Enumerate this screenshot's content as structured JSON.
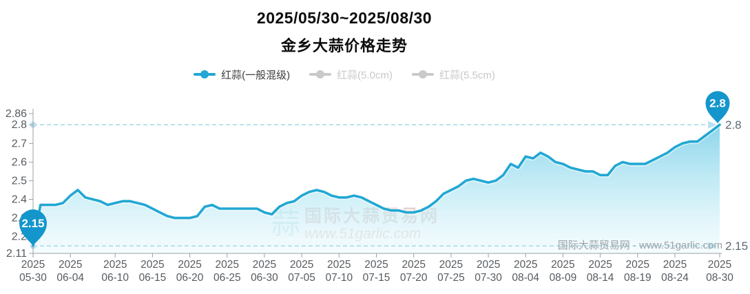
{
  "header": {
    "title": "2025/05/30~2025/08/30",
    "subtitle": "金乡大蒜价格走势"
  },
  "legend": [
    {
      "label": "红蒜(一般混级)",
      "active": true
    },
    {
      "label": "红蒜(5.0cm)",
      "active": false
    },
    {
      "label": "红蒜(5.5cm)",
      "active": false
    }
  ],
  "watermark": {
    "center_name": "国际大蒜贸易网",
    "center_url": "www.51garlic.com",
    "logo_glyph": "蒜",
    "corner": "国际大蒜贸易网 · www.51garlic.com"
  },
  "chart_data": {
    "type": "area",
    "title": "金乡大蒜价格走势",
    "date_range": "2025/05/30~2025/08/30",
    "series_name": "红蒜(一般混级)",
    "interval": "daily",
    "ylim": [
      2.11,
      2.86
    ],
    "grid": false,
    "legend_position": "top-center",
    "y_ticks": [
      {
        "label": "2.86",
        "value": 2.86
      },
      {
        "label": "2.8",
        "value": 2.8
      },
      {
        "label": "2.7",
        "value": 2.7
      },
      {
        "label": "2.6",
        "value": 2.6
      },
      {
        "label": "2.5",
        "value": 2.5
      },
      {
        "label": "2.4",
        "value": 2.4
      },
      {
        "label": "2.3",
        "value": 2.3
      },
      {
        "label": "2.2",
        "value": 2.2
      },
      {
        "label": "2.11",
        "value": 2.11
      }
    ],
    "x_ticks": [
      {
        "year": "2025",
        "date": "05-30",
        "day": 0
      },
      {
        "year": "2025",
        "date": "06-04",
        "day": 5
      },
      {
        "year": "2025",
        "date": "06-10",
        "day": 11
      },
      {
        "year": "2025",
        "date": "06-15",
        "day": 16
      },
      {
        "year": "2025",
        "date": "06-20",
        "day": 21
      },
      {
        "year": "2025",
        "date": "06-25",
        "day": 26
      },
      {
        "year": "2025",
        "date": "06-30",
        "day": 31
      },
      {
        "year": "2025",
        "date": "07-05",
        "day": 36
      },
      {
        "year": "2025",
        "date": "07-10",
        "day": 41
      },
      {
        "year": "2025",
        "date": "07-15",
        "day": 46
      },
      {
        "year": "2025",
        "date": "07-20",
        "day": 51
      },
      {
        "year": "2025",
        "date": "07-25",
        "day": 56
      },
      {
        "year": "2025",
        "date": "07-30",
        "day": 61
      },
      {
        "year": "2025",
        "date": "08-04",
        "day": 66
      },
      {
        "year": "2025",
        "date": "08-09",
        "day": 71
      },
      {
        "year": "2025",
        "date": "08-14",
        "day": 76
      },
      {
        "year": "2025",
        "date": "08-19",
        "day": 81
      },
      {
        "year": "2025",
        "date": "08-24",
        "day": 86
      },
      {
        "year": "2025",
        "date": "08-30",
        "day": 92
      }
    ],
    "values": [
      2.15,
      2.37,
      2.37,
      2.37,
      2.38,
      2.42,
      2.45,
      2.41,
      2.4,
      2.39,
      2.37,
      2.38,
      2.39,
      2.39,
      2.38,
      2.37,
      2.35,
      2.33,
      2.31,
      2.3,
      2.3,
      2.3,
      2.31,
      2.36,
      2.37,
      2.35,
      2.35,
      2.35,
      2.35,
      2.35,
      2.35,
      2.33,
      2.32,
      2.36,
      2.38,
      2.39,
      2.42,
      2.44,
      2.45,
      2.44,
      2.42,
      2.41,
      2.41,
      2.42,
      2.41,
      2.39,
      2.37,
      2.35,
      2.34,
      2.34,
      2.33,
      2.33,
      2.34,
      2.36,
      2.39,
      2.43,
      2.45,
      2.47,
      2.5,
      2.51,
      2.5,
      2.49,
      2.5,
      2.53,
      2.59,
      2.57,
      2.63,
      2.62,
      2.65,
      2.63,
      2.6,
      2.59,
      2.57,
      2.56,
      2.55,
      2.55,
      2.53,
      2.53,
      2.58,
      2.6,
      2.59,
      2.59,
      2.59,
      2.61,
      2.63,
      2.65,
      2.68,
      2.7,
      2.71,
      2.71,
      2.74,
      2.77,
      2.8
    ],
    "start_marker": {
      "label": "2.15",
      "value": 2.15
    },
    "end_marker": {
      "label": "2.8",
      "value": 2.8
    },
    "marklines": [
      {
        "label": "2.8",
        "value": 2.8
      },
      {
        "label": "2.15",
        "value": 2.15
      }
    ],
    "colors": {
      "line": "#22a7d3",
      "area_top": "#6fcbe7",
      "area_mid": "#b5e7f4",
      "area_bottom": "#ecf9fd",
      "pin": "#1496cd",
      "markline": "#a8dbe8",
      "markline_symbol": "#b9dff0",
      "legend_inactive": "#c9c9c9",
      "axis": "#9aa0a6",
      "tick_text": "#565b60"
    }
  }
}
